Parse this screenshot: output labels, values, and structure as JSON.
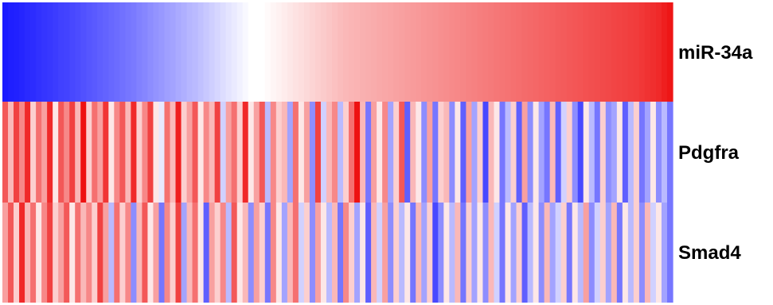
{
  "chart_data": {
    "type": "heatmap",
    "title": "",
    "rows": [
      "miR-34a",
      "Pdgfra",
      "Smad4"
    ],
    "n_columns": 120,
    "value_range": [
      -1,
      1
    ],
    "colormap": {
      "low": "#1a1aff",
      "mid": "#ffffff",
      "high": "#ee1111"
    },
    "columns_sorted_by": "miR-34a",
    "values": {
      "miR-34a": [
        -1.0,
        -0.98,
        -0.97,
        -0.95,
        -0.93,
        -0.92,
        -0.9,
        -0.88,
        -0.87,
        -0.85,
        -0.83,
        -0.82,
        -0.8,
        -0.78,
        -0.76,
        -0.74,
        -0.72,
        -0.7,
        -0.68,
        -0.66,
        -0.64,
        -0.62,
        -0.6,
        -0.58,
        -0.55,
        -0.53,
        -0.5,
        -0.47,
        -0.45,
        -0.42,
        -0.4,
        -0.37,
        -0.35,
        -0.32,
        -0.3,
        -0.27,
        -0.24,
        -0.21,
        -0.18,
        -0.15,
        -0.12,
        -0.09,
        -0.06,
        -0.03,
        0.0,
        0.0,
        0.0,
        0.02,
        0.04,
        0.06,
        0.08,
        0.1,
        0.12,
        0.14,
        0.16,
        0.18,
        0.2,
        0.22,
        0.24,
        0.26,
        0.28,
        0.3,
        0.31,
        0.32,
        0.33,
        0.34,
        0.35,
        0.36,
        0.37,
        0.38,
        0.39,
        0.4,
        0.41,
        0.42,
        0.43,
        0.44,
        0.45,
        0.46,
        0.47,
        0.48,
        0.49,
        0.5,
        0.51,
        0.52,
        0.53,
        0.54,
        0.55,
        0.56,
        0.57,
        0.58,
        0.59,
        0.6,
        0.61,
        0.62,
        0.63,
        0.64,
        0.65,
        0.66,
        0.67,
        0.68,
        0.69,
        0.7,
        0.71,
        0.72,
        0.73,
        0.74,
        0.75,
        0.76,
        0.77,
        0.78,
        0.79,
        0.8,
        0.81,
        0.82,
        0.84,
        0.86,
        0.88,
        0.9,
        0.94,
        0.98
      ],
      "Pdgfra": [
        0.7,
        0.3,
        0.8,
        0.5,
        0.9,
        0.2,
        0.6,
        0.4,
        0.9,
        0.1,
        0.7,
        0.5,
        0.8,
        0.3,
        1.0,
        0.2,
        0.6,
        0.4,
        0.85,
        0.1,
        0.5,
        0.7,
        0.3,
        0.9,
        0.2,
        0.5,
        0.8,
        0.1,
        -0.1,
        0.6,
        0.3,
        0.95,
        0.2,
        0.4,
        0.7,
        0.1,
        0.5,
        0.3,
        0.8,
        -0.2,
        0.4,
        0.6,
        0.2,
        0.9,
        0.1,
        0.4,
        0.7,
        -0.3,
        0.5,
        0.2,
        0.3,
        -0.4,
        0.6,
        0.1,
        0.4,
        -0.5,
        0.8,
        -0.2,
        0.3,
        0.5,
        -0.3,
        0.2,
        0.6,
        1.0,
        0.3,
        -0.6,
        0.4,
        0.1,
        0.5,
        -0.4,
        0.2,
        0.7,
        -0.7,
        0.3,
        0.1,
        -0.5,
        0.4,
        -0.6,
        0.2,
        0.3,
        -0.5,
        0.1,
        -0.7,
        0.4,
        -0.4,
        0.2,
        -0.8,
        0.3,
        0.1,
        -0.6,
        -0.3,
        0.2,
        -0.7,
        0.4,
        -0.5,
        0.1,
        -0.4,
        -0.6,
        0.3,
        -0.7,
        -0.2,
        0.2,
        -0.5,
        -0.8,
        0.1,
        -0.3,
        -0.6,
        0.2,
        -0.5,
        -0.4,
        0.1,
        -0.7,
        -0.3,
        0.2,
        -0.6,
        -0.4,
        0.1,
        -0.5,
        -0.3,
        -0.6
      ],
      "Smad4": [
        0.4,
        0.7,
        0.2,
        0.9,
        0.3,
        0.6,
        0.1,
        0.5,
        0.8,
        0.2,
        0.4,
        0.7,
        0.1,
        0.6,
        0.3,
        0.5,
        0.2,
        0.8,
        0.4,
        -0.3,
        0.6,
        0.2,
        0.5,
        -0.5,
        0.3,
        0.7,
        0.1,
        0.4,
        -0.6,
        0.5,
        0.2,
        0.8,
        -0.4,
        0.3,
        0.6,
        0.1,
        -0.7,
        0.4,
        0.2,
        0.5,
        -0.3,
        0.7,
        0.1,
        0.3,
        -0.5,
        0.4,
        0.2,
        -0.6,
        0.5,
        0.1,
        -0.4,
        0.3,
        0.6,
        -0.2,
        0.2,
        -0.5,
        0.4,
        0.1,
        -0.3,
        0.3,
        -0.6,
        0.5,
        0.2,
        -0.4,
        0.1,
        -0.7,
        0.3,
        -0.2,
        0.4,
        -0.5,
        0.2,
        -0.3,
        0.1,
        -0.6,
        0.3,
        -0.4,
        0.2,
        -0.8,
        -0.5,
        0.1,
        -0.3,
        0.3,
        -0.6,
        0.2,
        -0.4,
        0.1,
        -0.5,
        0.3,
        -0.2,
        -0.6,
        0.1,
        -0.4,
        0.2,
        -0.7,
        -0.3,
        0.1,
        -0.5,
        0.3,
        -0.4,
        -0.2,
        0.2,
        -0.6,
        0.1,
        -0.3,
        0.4,
        -0.5,
        -0.2,
        0.2,
        -0.4,
        0.3,
        -0.6,
        0.1,
        -0.3,
        0.2,
        -0.5,
        0.3,
        -0.2,
        0.1,
        -0.4,
        -0.6
      ]
    }
  }
}
